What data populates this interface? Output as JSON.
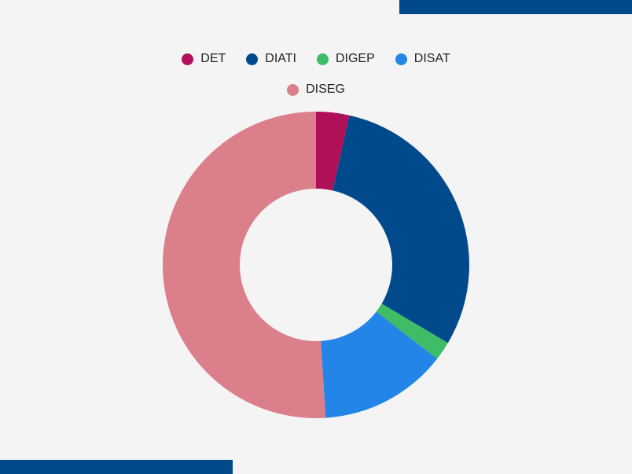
{
  "theme": {
    "background": "#f4f4f4",
    "accent_bar": "#00498a"
  },
  "chart_data": {
    "type": "pie",
    "variant": "donut",
    "legend_position": "top-center",
    "categories": [
      "DET",
      "DIATI",
      "DIGEP",
      "DISAT",
      "DISEG"
    ],
    "values": [
      3.5,
      30.0,
      2.0,
      13.5,
      51.0
    ],
    "colors": [
      "#b01058",
      "#00498a",
      "#3fbc66",
      "#2385e8",
      "#db7f8b"
    ]
  }
}
